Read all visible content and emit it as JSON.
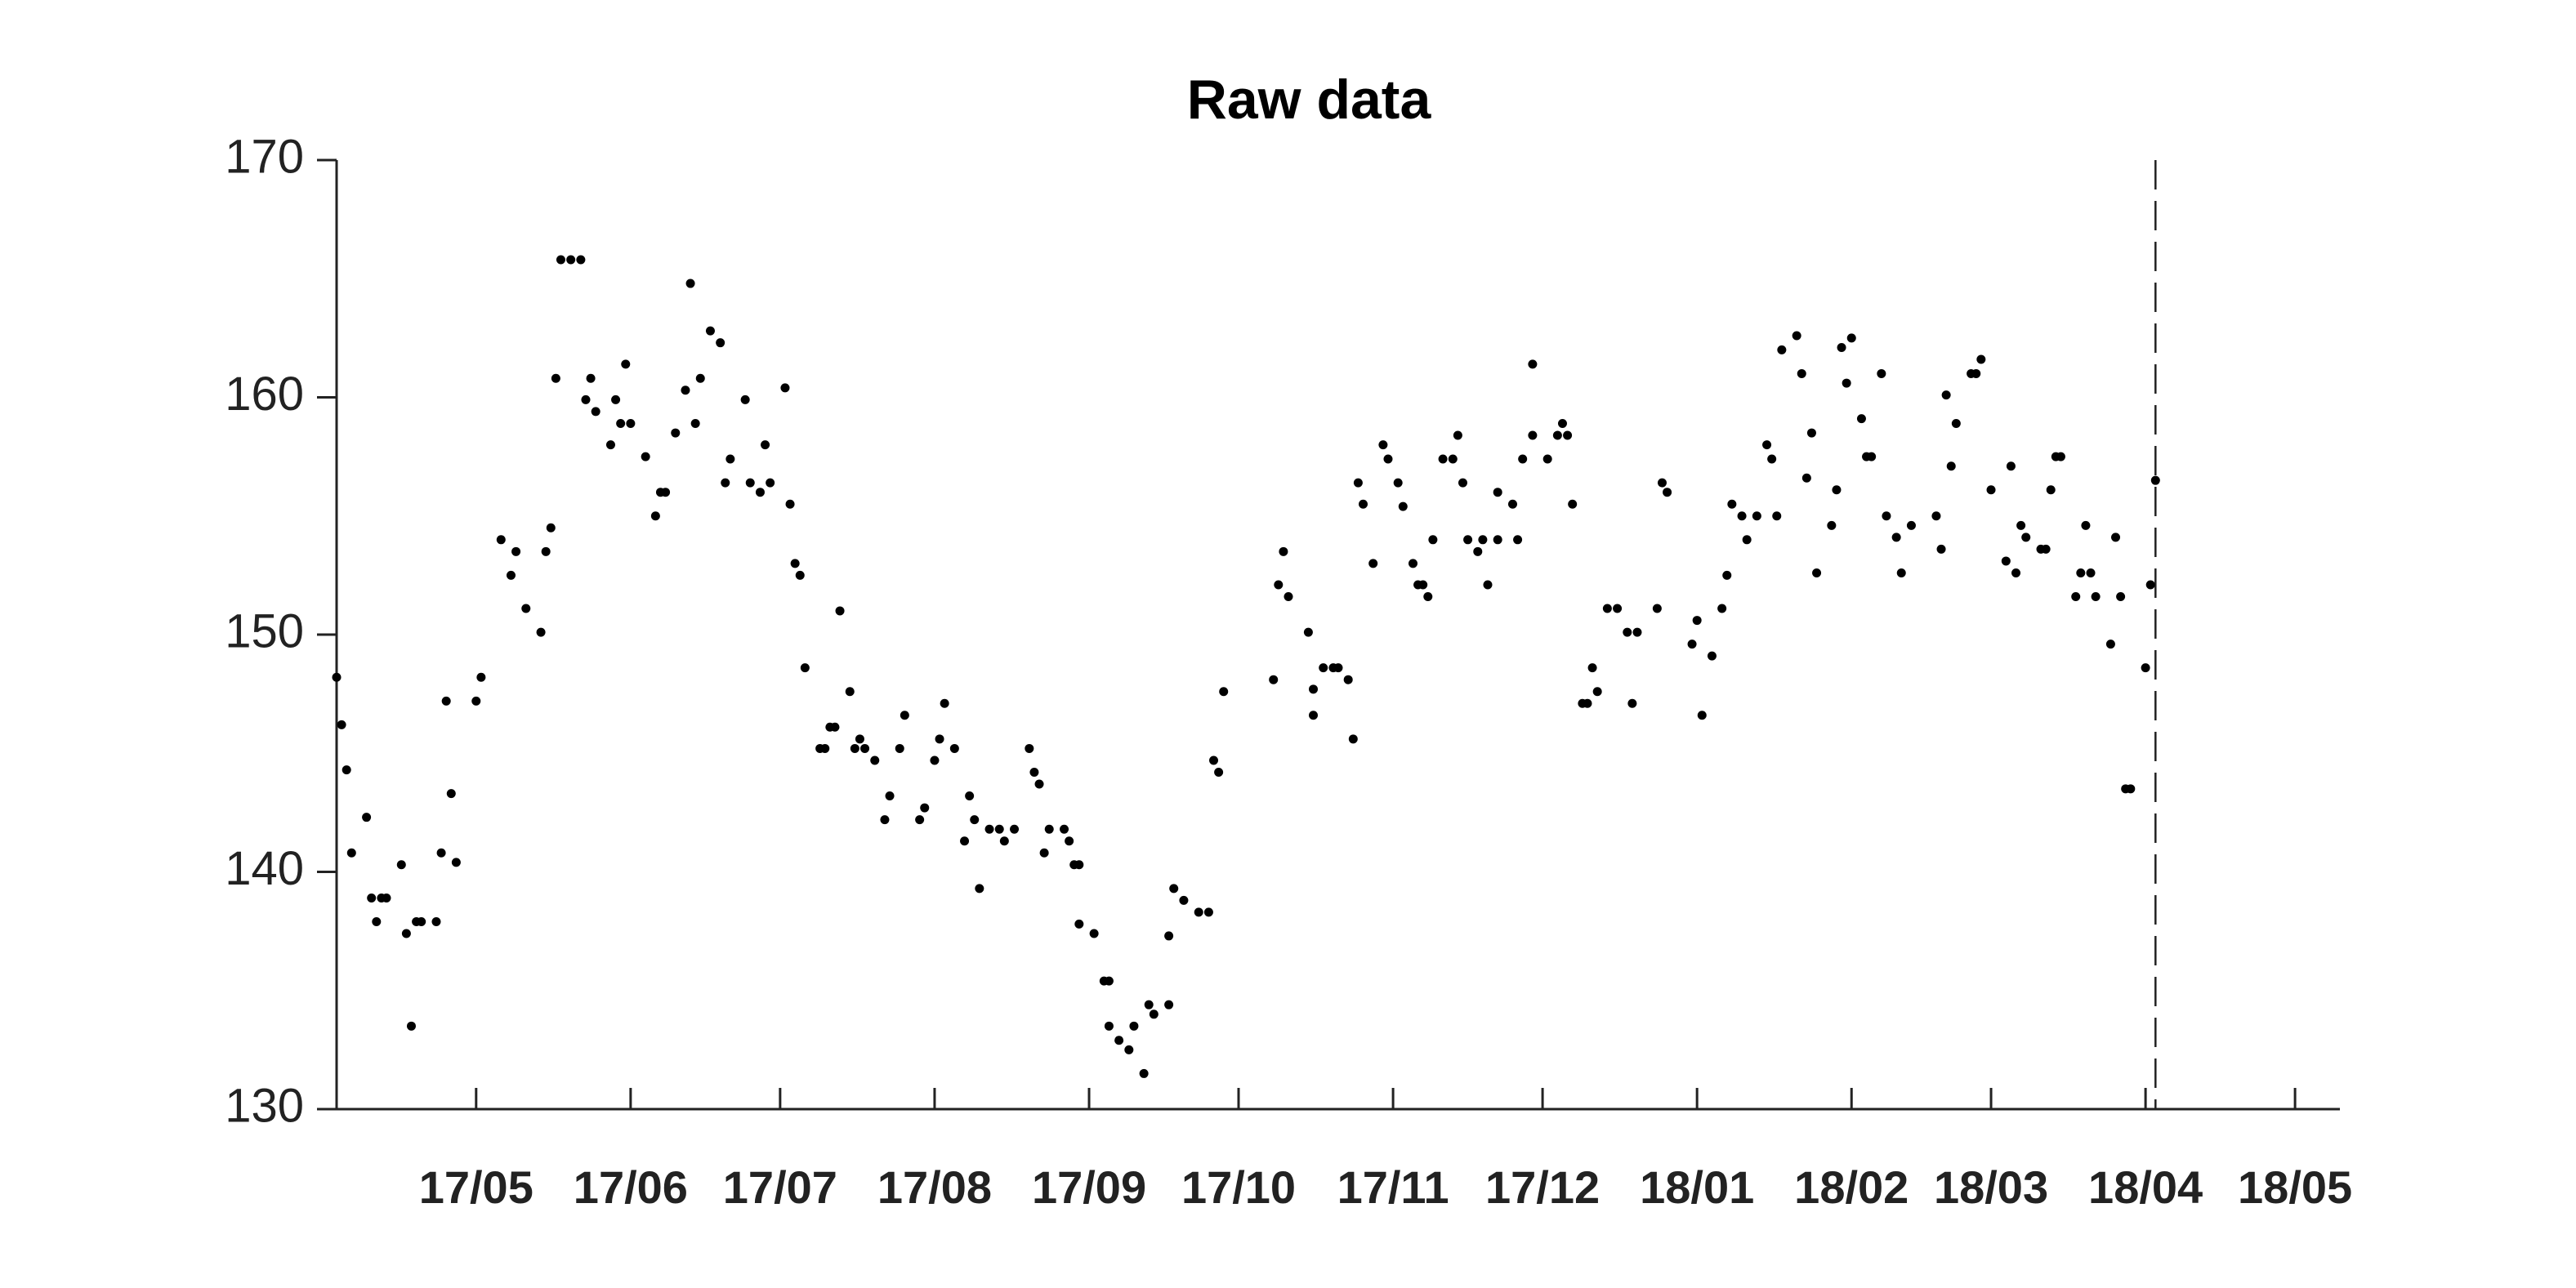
{
  "chart_data": {
    "type": "scatter",
    "title": "Raw data",
    "color": "#000000",
    "x": [
      0,
      1,
      2,
      3,
      6,
      7,
      8,
      9,
      10,
      13,
      14,
      15,
      16,
      17,
      20,
      21,
      22,
      23,
      24,
      28,
      29,
      33,
      35,
      36,
      38,
      41,
      42,
      43,
      44,
      45,
      47,
      49,
      50,
      51,
      52,
      55,
      56,
      57,
      58,
      59,
      62,
      64,
      65,
      66,
      68,
      70,
      71,
      72,
      73,
      75,
      77,
      78,
      79,
      82,
      83,
      85,
      86,
      87,
      90,
      91,
      92,
      93,
      94,
      97,
      98,
      99,
      100,
      101,
      103,
      104,
      105,
      106,
      108,
      110,
      111,
      113,
      114,
      117,
      118,
      120,
      121,
      122,
      124,
      126,
      127,
      128,
      129,
      131,
      133,
      134,
      136,
      139,
      140,
      141,
      142,
      143,
      146,
      147,
      148,
      149,
      149,
      152,
      154,
      155,
      155,
      157,
      159,
      160,
      162,
      163,
      164,
      167,
      167,
      168,
      170,
      173,
      175,
      176,
      177,
      178,
      188,
      189,
      190,
      191,
      195,
      196,
      196,
      198,
      200,
      201,
      203,
      204,
      205,
      206,
      208,
      210,
      211,
      213,
      214,
      216,
      217,
      218,
      219,
      220,
      222,
      224,
      225,
      226,
      227,
      229,
      230,
      231,
      233,
      233,
      236,
      237,
      238,
      240,
      240,
      243,
      245,
      246,
      247,
      248,
      250,
      251,
      252,
      253,
      255,
      257,
      259,
      260,
      261,
      265,
      266,
      267,
      272,
      273,
      274,
      276,
      278,
      279,
      280,
      282,
      283,
      285,
      287,
      288,
      289,
      290,
      293,
      294,
      295,
      296,
      297,
      300,
      301,
      302,
      303,
      304,
      306,
      307,
      308,
      310,
      311,
      313,
      314,
      316,
      321,
      322,
      323,
      324,
      325,
      328,
      329,
      330,
      332,
      335,
      336,
      337,
      338,
      339,
      342,
      343,
      344,
      345,
      346,
      349,
      350,
      351,
      352,
      353,
      356,
      357,
      358,
      359,
      360,
      363,
      364,
      365
    ],
    "values": [
      148.2,
      146.2,
      144.3,
      140.8,
      142.3,
      138.9,
      137.9,
      138.9,
      138.9,
      140.3,
      137.4,
      133.5,
      137.9,
      137.9,
      137.9,
      140.8,
      147.2,
      143.3,
      140.4,
      147.2,
      148.2,
      154.0,
      152.5,
      153.5,
      151.1,
      150.1,
      153.5,
      154.5,
      160.8,
      165.8,
      165.8,
      165.8,
      159.9,
      160.8,
      159.4,
      158.0,
      159.9,
      158.9,
      161.4,
      158.9,
      157.5,
      155.0,
      156.0,
      156.0,
      158.5,
      160.3,
      164.8,
      158.9,
      160.8,
      162.8,
      162.3,
      156.4,
      157.4,
      159.9,
      156.4,
      156.0,
      158.0,
      156.4,
      160.4,
      155.5,
      153.0,
      152.5,
      148.6,
      145.2,
      145.2,
      146.1,
      146.1,
      151.0,
      147.6,
      145.2,
      145.6,
      145.2,
      144.7,
      142.2,
      143.2,
      145.2,
      146.6,
      142.2,
      142.7,
      144.7,
      145.6,
      147.1,
      145.2,
      141.3,
      143.2,
      142.2,
      139.3,
      141.8,
      141.8,
      141.3,
      141.8,
      145.2,
      144.2,
      143.7,
      140.8,
      141.8,
      141.8,
      141.3,
      140.3,
      140.3,
      137.8,
      137.4,
      135.4,
      135.4,
      133.5,
      132.9,
      132.5,
      133.5,
      131.5,
      134.4,
      134.0,
      134.4,
      137.3,
      139.3,
      138.8,
      138.3,
      138.3,
      144.7,
      144.2,
      147.6,
      148.1,
      152.1,
      153.5,
      151.6,
      150.1,
      146.6,
      147.7,
      148.6,
      148.6,
      148.6,
      148.1,
      145.6,
      156.4,
      155.5,
      153.0,
      158.0,
      157.4,
      156.4,
      155.4,
      153.0,
      152.1,
      152.1,
      151.6,
      154.0,
      157.4,
      157.4,
      158.4,
      156.4,
      154.0,
      153.5,
      154.0,
      152.1,
      154.0,
      156.0,
      155.5,
      154.0,
      157.4,
      161.4,
      158.4,
      157.4,
      158.4,
      158.9,
      158.4,
      155.5,
      147.1,
      147.1,
      148.6,
      147.6,
      151.1,
      151.1,
      150.1,
      147.1,
      150.1,
      151.1,
      156.4,
      156.0,
      149.6,
      150.6,
      146.6,
      149.1,
      151.1,
      152.5,
      155.5,
      155.0,
      154.0,
      155.0,
      158.0,
      157.4,
      155.0,
      162.0,
      162.6,
      161.0,
      156.6,
      158.5,
      152.6,
      154.6,
      156.1,
      162.1,
      160.6,
      162.5,
      159.1,
      157.5,
      157.5,
      161.0,
      155.0,
      154.1,
      152.6,
      154.6,
      155.0,
      153.6,
      160.1,
      157.1,
      158.9,
      161.0,
      161.0,
      161.6,
      156.1,
      153.1,
      157.1,
      152.6,
      154.6,
      154.1,
      153.6,
      153.6,
      156.1,
      157.5,
      157.5,
      151.6,
      152.6,
      154.6,
      152.6,
      151.6,
      149.6,
      154.1,
      151.6,
      143.5,
      143.5,
      148.6,
      152.1,
      156.5
    ],
    "xlim": [
      0,
      402
    ],
    "ylim": [
      130,
      170
    ],
    "yticks": [
      130,
      140,
      150,
      160,
      170
    ],
    "xticks": [
      {
        "value": 28,
        "label": "17/05"
      },
      {
        "value": 59,
        "label": "17/06"
      },
      {
        "value": 89,
        "label": "17/07"
      },
      {
        "value": 120,
        "label": "17/08"
      },
      {
        "value": 151,
        "label": "17/09"
      },
      {
        "value": 181,
        "label": "17/10"
      },
      {
        "value": 212,
        "label": "17/11"
      },
      {
        "value": 242,
        "label": "17/12"
      },
      {
        "value": 273,
        "label": "18/01"
      },
      {
        "value": 304,
        "label": "18/02"
      },
      {
        "value": 332,
        "label": "18/03"
      },
      {
        "value": 363,
        "label": "18/04"
      },
      {
        "value": 393,
        "label": "18/05"
      }
    ],
    "vline": 365,
    "grid": false
  }
}
